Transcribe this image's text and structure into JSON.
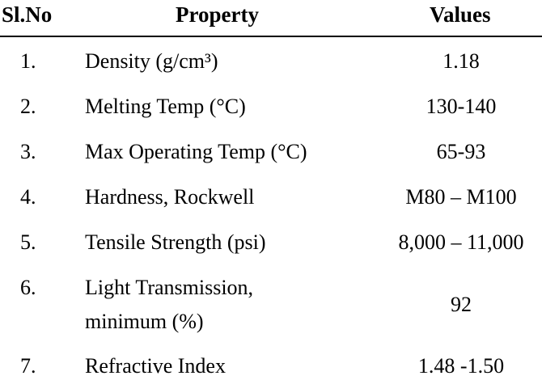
{
  "table": {
    "headers": {
      "slno": "Sl.No",
      "property": "Property",
      "values": "Values"
    },
    "rows": [
      {
        "num": "1.",
        "property": [
          "Density (g/cm³)"
        ],
        "value": "1.18"
      },
      {
        "num": "2.",
        "property": [
          "Melting Temp (°C)"
        ],
        "value": "130-140"
      },
      {
        "num": "3.",
        "property": [
          "Max Operating Temp (°C)"
        ],
        "value": "65-93"
      },
      {
        "num": "4.",
        "property": [
          "Hardness, Rockwell"
        ],
        "value": "M80 – M100"
      },
      {
        "num": "5.",
        "property": [
          "Tensile Strength (psi)"
        ],
        "value": "8,000 – 11,000"
      },
      {
        "num": "6.",
        "property": [
          "Light Transmission,",
          "minimum (%)"
        ],
        "value": "92"
      },
      {
        "num": "7.",
        "property": [
          "Refractive Index"
        ],
        "value": "1.48 -1.50"
      }
    ]
  }
}
